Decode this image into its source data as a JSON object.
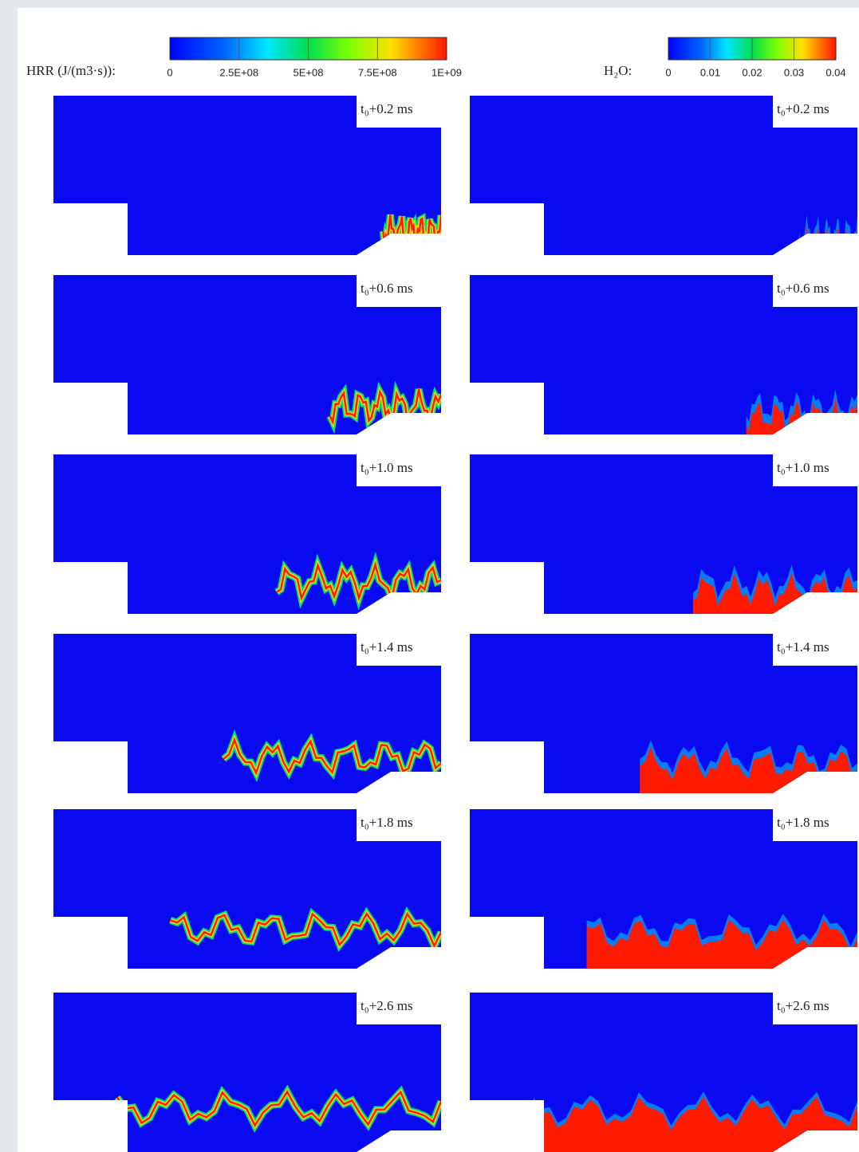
{
  "figure": {
    "colorbars": [
      {
        "label": "HRR (J/(m3·s)):",
        "ticks": [
          "0",
          "2.5E+08",
          "5E+08",
          "7.5E+08",
          "1E+09"
        ]
      },
      {
        "label": "H₂O:",
        "ticks": [
          "0",
          "0.01",
          "0.02",
          "0.03",
          "0.04"
        ]
      }
    ],
    "time_labels": [
      "t₀+0.2 ms",
      "t₀+0.6 ms",
      "t₀+1.0 ms",
      "t₀+1.4 ms",
      "t₀+1.8 ms",
      "t₀+2.6 ms"
    ]
  }
}
